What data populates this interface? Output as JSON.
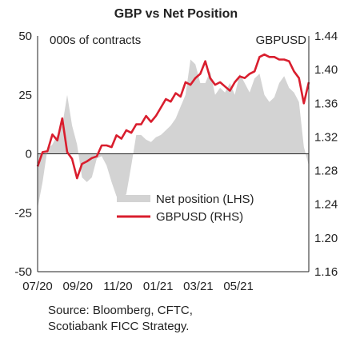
{
  "chart_data": {
    "type": "line",
    "title": "GBP vs Net Position",
    "left_axis_label": "000s of contracts",
    "right_axis_label": "GBPUSD",
    "x_tick_labels": [
      "07/20",
      "09/20",
      "11/20",
      "01/21",
      "03/21",
      "05/21"
    ],
    "left_ticks": [
      50,
      25,
      0,
      -25,
      -50
    ],
    "right_ticks": [
      "1.44",
      "1.40",
      "1.36",
      "1.32",
      "1.28",
      "1.24",
      "1.20",
      "1.16"
    ],
    "left_ylim": [
      -50,
      50
    ],
    "right_ylim": [
      1.16,
      1.44
    ],
    "legend_position": "bottom-center",
    "series": [
      {
        "name": "Net position (LHS)",
        "type": "area",
        "axis": "left",
        "color": "#d3d3d3",
        "values": [
          -23,
          -12,
          2,
          4,
          8,
          12,
          25,
          12,
          4,
          -10,
          -12,
          -10,
          -2,
          -1,
          -5,
          -12,
          -18,
          -20,
          -17,
          -5,
          8,
          8,
          6,
          5,
          7,
          8,
          10,
          12,
          15,
          20,
          25,
          40,
          38,
          30,
          30,
          35,
          25,
          28,
          26,
          30,
          25,
          34,
          30,
          26,
          32,
          34,
          25,
          22,
          24,
          30,
          33,
          28,
          26,
          22,
          3,
          -5
        ]
      },
      {
        "name": "GBPUSD (RHS)",
        "type": "line",
        "axis": "right",
        "color": "#d91e2e",
        "values": [
          1.285,
          1.302,
          1.303,
          1.323,
          1.316,
          1.342,
          1.302,
          1.294,
          1.271,
          1.288,
          1.291,
          1.295,
          1.297,
          1.31,
          1.31,
          1.308,
          1.322,
          1.318,
          1.328,
          1.325,
          1.335,
          1.335,
          1.345,
          1.338,
          1.345,
          1.355,
          1.365,
          1.362,
          1.372,
          1.368,
          1.385,
          1.382,
          1.39,
          1.395,
          1.41,
          1.39,
          1.382,
          1.385,
          1.38,
          1.375,
          1.385,
          1.392,
          1.39,
          1.395,
          1.398,
          1.415,
          1.418,
          1.415,
          1.415,
          1.412,
          1.412,
          1.41,
          1.398,
          1.39,
          1.36,
          1.385
        ]
      }
    ]
  },
  "source_lines": [
    "Source: Bloomberg, CFTC,",
    "Scotiabank FICC  Strategy."
  ]
}
